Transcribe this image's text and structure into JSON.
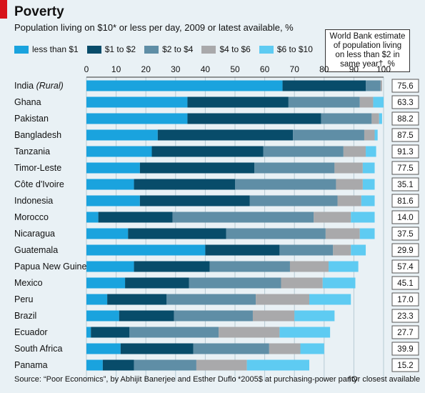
{
  "header": {
    "title": "Poverty",
    "subtitle": "Population living on $10* or less per day, 2009 or latest available, %",
    "note": "World Bank estimate of population living on less than $2 in same year†, %"
  },
  "footer": {
    "source": "Source: “Poor Economics”, by Abhijit Banerjee and Esther Duflo",
    "footnote1": "*2005$ at purchasing-power parity",
    "footnote2": "†Or closest available"
  },
  "colors": [
    "#1aa3de",
    "#084c6a",
    "#5f8ea6",
    "#a9a9ab",
    "#5ecbf2"
  ],
  "chart_data": {
    "type": "bar",
    "orientation": "horizontal",
    "stacked": true,
    "xlim": [
      0,
      100
    ],
    "xticks": [
      0,
      10,
      20,
      30,
      40,
      50,
      60,
      70,
      80,
      90,
      100
    ],
    "series": [
      {
        "name": "less than $1",
        "values": [
          66,
          34,
          34,
          24,
          22,
          18,
          16,
          18,
          4,
          14,
          40,
          16,
          13,
          7,
          11,
          1.5,
          11.5,
          5.5
        ]
      },
      {
        "name": "$1 to $2",
        "values": [
          28,
          34,
          45,
          45.5,
          37.5,
          38.5,
          34,
          37,
          25,
          33,
          25,
          25.5,
          21.5,
          20,
          18.5,
          13,
          24.5,
          10.5
        ]
      },
      {
        "name": "$2 to $4",
        "values": [
          5,
          24,
          17,
          24,
          27,
          27,
          34,
          29.5,
          47.5,
          33.5,
          18,
          27,
          31,
          30,
          26.5,
          30,
          25.5,
          21
        ]
      },
      {
        "name": "$4 to $6",
        "values": [
          0.5,
          4.5,
          2.5,
          3.5,
          7.5,
          9.5,
          9,
          8,
          12.5,
          11.5,
          6,
          13,
          14,
          18,
          14,
          20.5,
          10.5,
          17
        ]
      },
      {
        "name": "$6 to $10",
        "values": [
          0,
          3.5,
          1,
          1,
          3.5,
          4,
          4,
          4.5,
          8,
          5,
          5,
          10,
          11,
          14,
          13.5,
          17,
          8,
          21
        ]
      }
    ],
    "categories": [
      "India",
      "Ghana",
      "Pakistan",
      "Bangladesh",
      "Tanzania",
      "Timor-Leste",
      "Côte d'Ivoire",
      "Indonesia",
      "Morocco",
      "Nicaragua",
      "Guatemala",
      "Papua New Guinea",
      "Mexico",
      "Peru",
      "Brazil",
      "Ecuador",
      "South Africa",
      "Panama"
    ],
    "category_notes": {
      "India": "(Rural)"
    },
    "world_bank_under_2": [
      "75.6",
      "63.3",
      "88.2",
      "87.5",
      "91.3",
      "77.5",
      "35.1",
      "81.6",
      "14.0",
      "37.5",
      "29.9",
      "57.4",
      "45.1",
      "17.0",
      "23.3",
      "27.7",
      "39.9",
      "15.2"
    ],
    "grid": true
  }
}
